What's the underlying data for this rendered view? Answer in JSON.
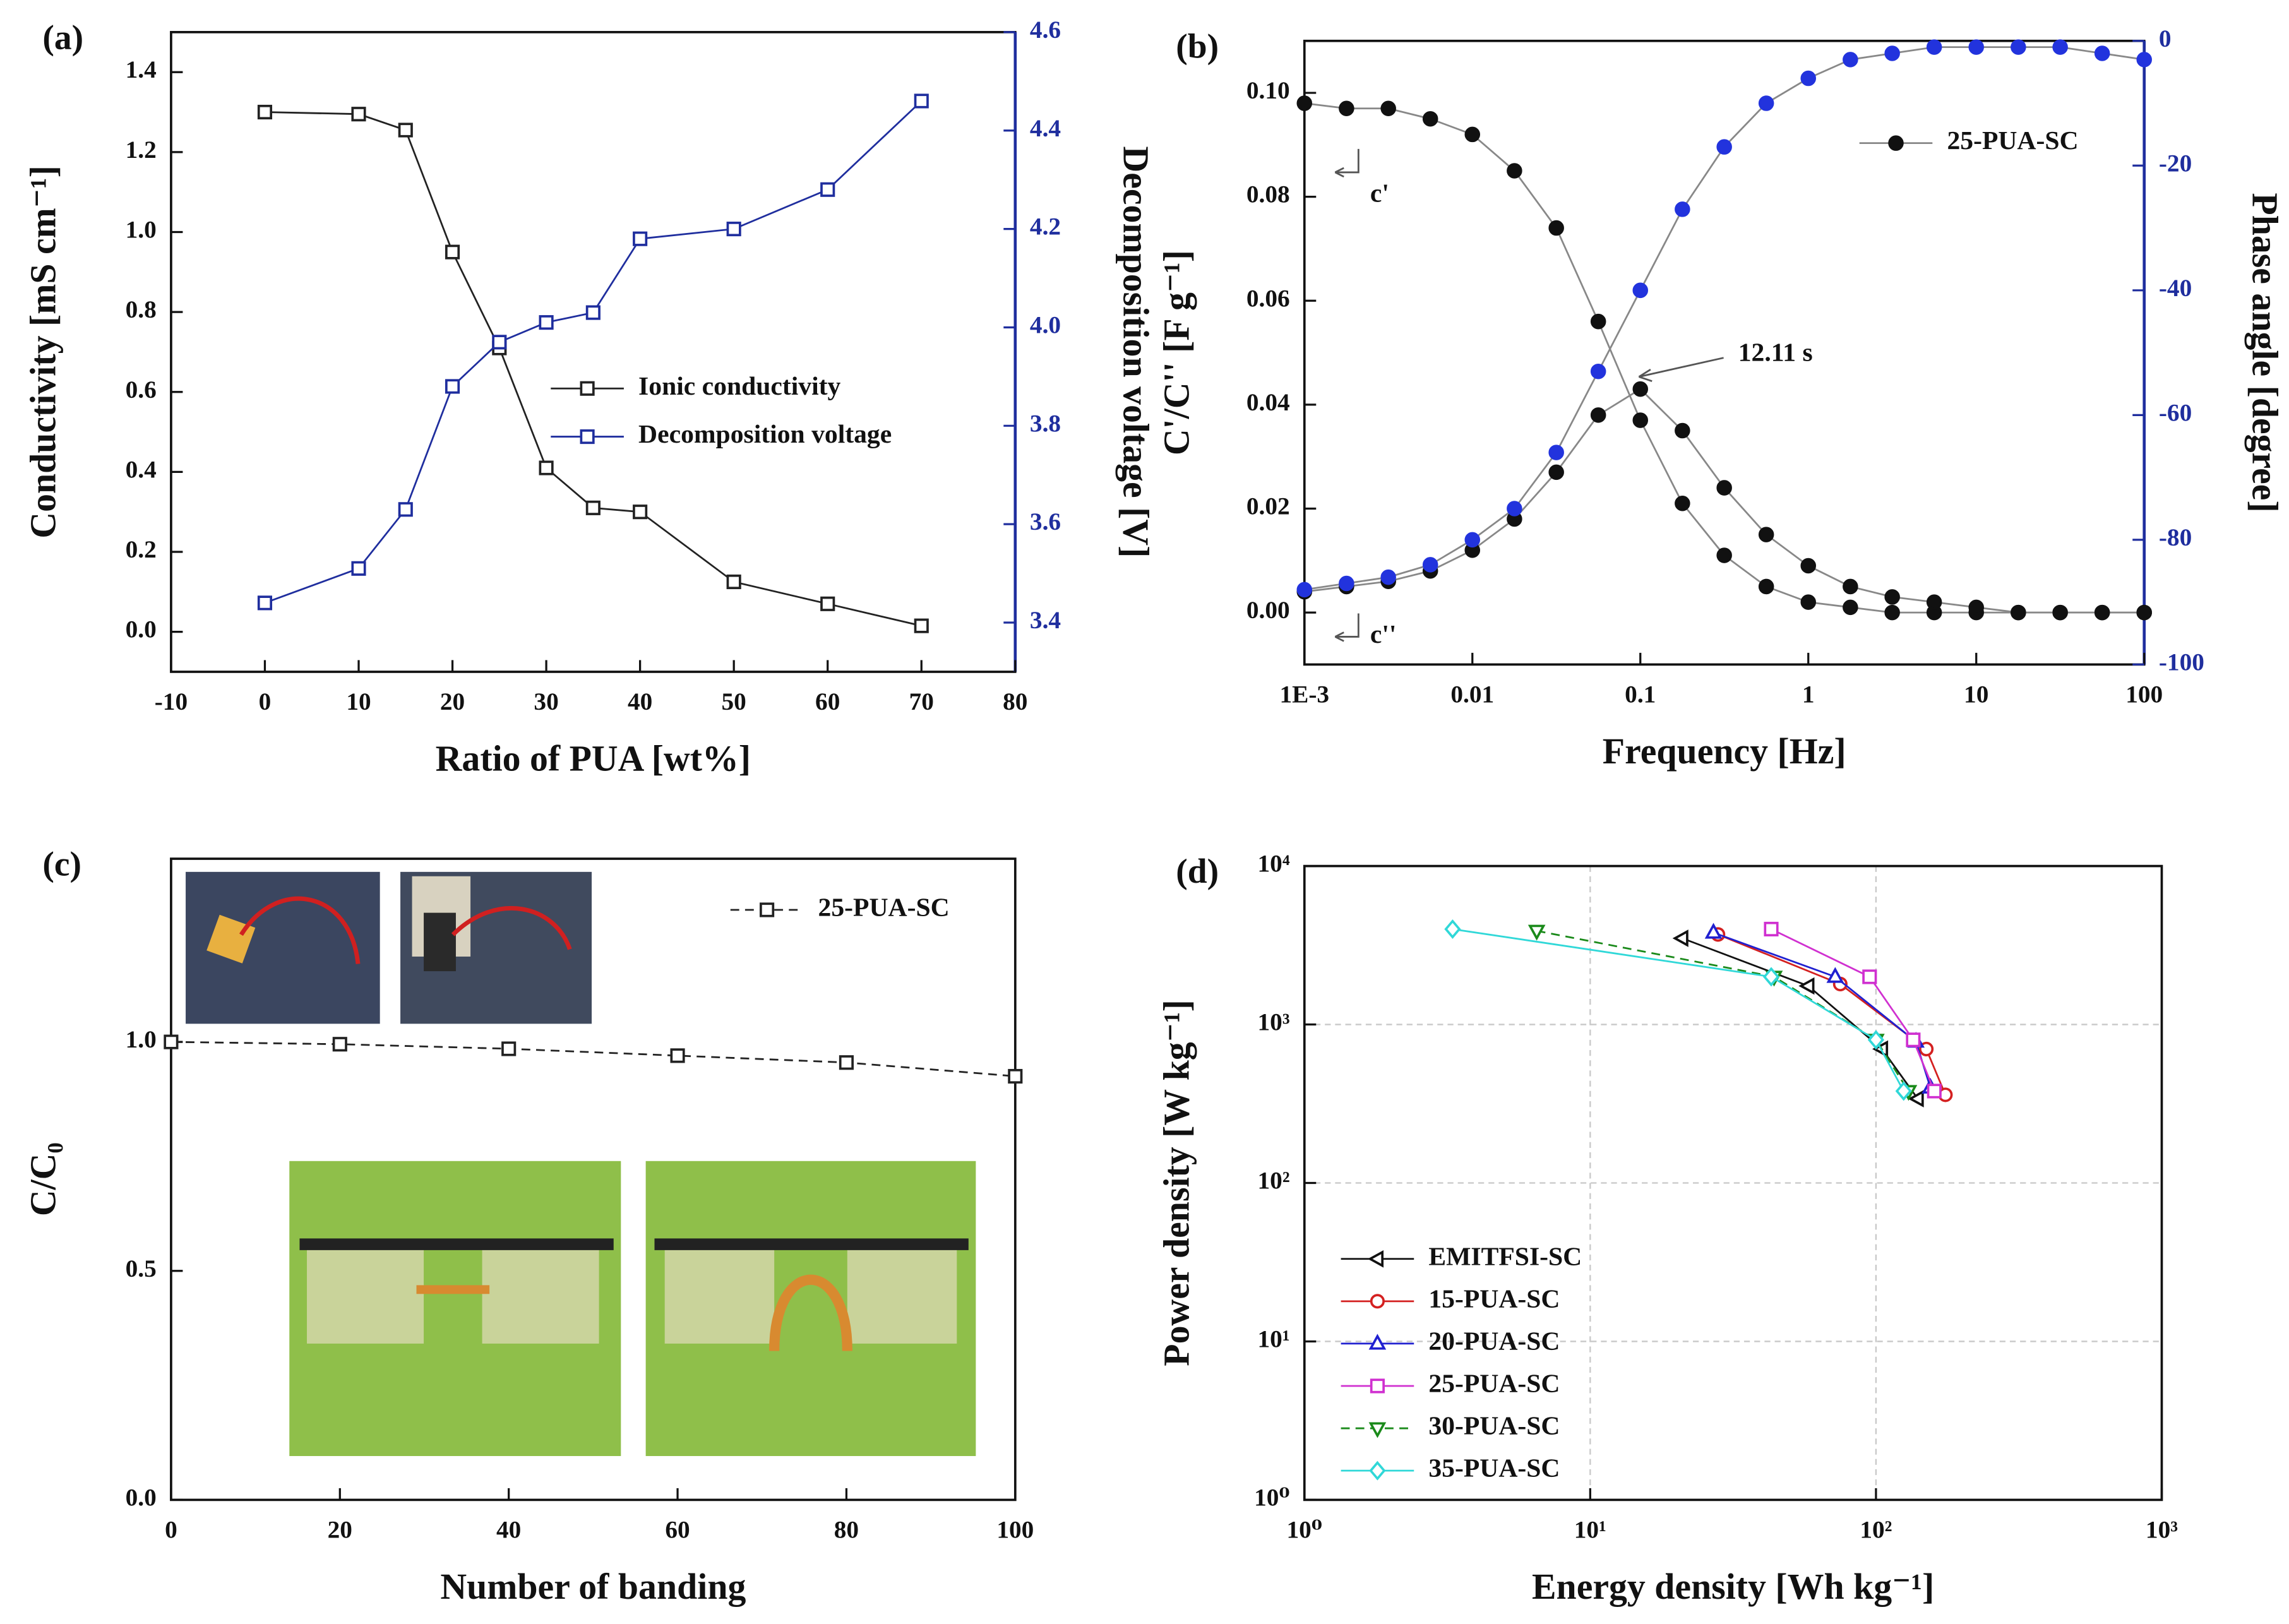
{
  "chart_data": [
    {
      "type": "line",
      "panel": "(a)",
      "xlabel": "Ratio of PUA [wt%]",
      "ylabel": "Conductivity [mS cm⁻¹]",
      "y2label": "Decomposition voltage [V]",
      "x": [
        0,
        10,
        15,
        20,
        25,
        30,
        35,
        40,
        50,
        60,
        70
      ],
      "series": [
        {
          "name": "Ionic conductivity",
          "color": "#222222",
          "marker": "square",
          "values": [
            1.3,
            1.295,
            1.255,
            0.95,
            0.71,
            0.41,
            0.31,
            0.3,
            0.125,
            0.07,
            0.015
          ]
        },
        {
          "name": "Decomposition voltage",
          "color": "#1f2e9e",
          "marker": "square",
          "axis": "y2",
          "values": [
            3.44,
            3.51,
            3.63,
            3.88,
            3.97,
            4.01,
            4.03,
            4.18,
            4.2,
            4.28,
            4.46
          ]
        }
      ],
      "xlim": [
        -10,
        80
      ],
      "xticks": [
        -10,
        0,
        10,
        20,
        30,
        40,
        50,
        60,
        70,
        80
      ],
      "ylim": [
        -0.1,
        1.5
      ],
      "yticks": [
        {
          "value": 0,
          "label": "0.0"
        },
        0.2,
        0.4,
        0.6,
        0.8,
        {
          "value": 1,
          "label": "1.0"
        },
        1.2,
        1.4
      ],
      "y2lim": [
        3.3,
        4.6
      ],
      "y2ticks": [
        3.4,
        3.6,
        3.8,
        {
          "value": 4,
          "label": "4.0"
        },
        4.2,
        4.4,
        4.6
      ],
      "y2color": "#1f2e9e",
      "legend": "center right"
    },
    {
      "type": "line",
      "panel": "(b)",
      "xlabel": "Frequency [Hz]",
      "ylabel": "C'/C'' [F g⁻¹]",
      "y2label": "Phase angle [degree]",
      "xscale": "log",
      "x": [
        0.001,
        0.00178,
        0.00316,
        0.00562,
        0.01,
        0.0178,
        0.0316,
        0.0562,
        0.1,
        0.178,
        0.316,
        0.562,
        1,
        1.78,
        3.16,
        5.62,
        10,
        17.8,
        31.6,
        56.2,
        100
      ],
      "series": [
        {
          "name": "25-PUA-SC",
          "color": "#111111",
          "marker": "circle",
          "filled": true,
          "values": [
            0.098,
            0.097,
            0.097,
            0.095,
            0.092,
            0.085,
            0.074,
            0.056,
            0.037,
            0.021,
            0.011,
            0.005,
            0.002,
            0.001,
            0,
            0,
            0,
            0,
            0,
            0,
            0
          ]
        },
        {
          "color": "#111111",
          "marker": "circle",
          "filled": true,
          "values": [
            0.004,
            0.005,
            0.006,
            0.008,
            0.012,
            0.018,
            0.027,
            0.038,
            0.043,
            0.035,
            0.024,
            0.015,
            0.009,
            0.005,
            0.003,
            0.002,
            0.001,
            0,
            0,
            0,
            0
          ]
        },
        {
          "color": "#2233dd",
          "marker": "circle",
          "filled": true,
          "axis": "y2",
          "values": [
            -88,
            -87,
            -86,
            -84,
            -80,
            -75,
            -66,
            -53,
            -40,
            -27,
            -17,
            -10,
            -6,
            -3,
            -2,
            -1,
            -1,
            -1,
            -1,
            -2,
            -3
          ]
        }
      ],
      "xlim": [
        0.001,
        100
      ],
      "xticks": [
        {
          "value": 0.001,
          "label": "1E-3"
        },
        0.01,
        0.1,
        1,
        10,
        100
      ],
      "ylim": [
        -0.01,
        0.11
      ],
      "yticks": [
        {
          "value": 0,
          "label": "0.00"
        },
        0.02,
        0.04,
        0.06,
        0.08,
        {
          "value": 0.1,
          "label": "0.10"
        }
      ],
      "y2lim": [
        -100,
        0
      ],
      "y2ticks": [
        -100,
        -80,
        -60,
        -40,
        -20,
        0
      ],
      "y2color": "#1f2e9e",
      "legend": "upper right",
      "annotations": [
        "12.11 s",
        "c'",
        "c''"
      ]
    },
    {
      "type": "line",
      "panel": "(c)",
      "xlabel": "Number of banding",
      "ylabel": "C/C₀",
      "x": [
        0,
        20,
        40,
        60,
        80,
        100
      ],
      "series": [
        {
          "name": "25-PUA-SC",
          "color": "#222222",
          "marker": "square",
          "dashed": true,
          "values": [
            1.0,
            0.995,
            0.985,
            0.97,
            0.955,
            0.925
          ]
        }
      ],
      "xlim": [
        0,
        100
      ],
      "xticks": [
        0,
        20,
        40,
        60,
        80,
        100
      ],
      "ylim": [
        0,
        1.4
      ],
      "yticks": [
        {
          "value": 0,
          "label": "0.0"
        },
        0.5,
        {
          "value": 1,
          "label": "1.0"
        }
      ],
      "legend": "upper right"
    },
    {
      "type": "line",
      "panel": "(d)",
      "xlabel": "Energy density [Wh kg⁻¹]",
      "ylabel": "Power density [W kg⁻¹]",
      "xscale": "log",
      "yscale": "log",
      "grid": true,
      "series": [
        {
          "name": "EMITFSI-SC",
          "color": "#111111",
          "marker": "triangle-left",
          "x": [
            21,
            58,
            105,
            140
          ],
          "values": [
            3500,
            1750,
            700,
            340
          ]
        },
        {
          "name": "15-PUA-SC",
          "color": "#d42020",
          "marker": "circle",
          "x": [
            28,
            75,
            150,
            175
          ],
          "values": [
            3700,
            1800,
            700,
            360
          ]
        },
        {
          "name": "20-PUA-SC",
          "color": "#2020d0",
          "marker": "triangle-up",
          "x": [
            27,
            72,
            138,
            155
          ],
          "values": [
            3800,
            2000,
            780,
            400
          ]
        },
        {
          "name": "25-PUA-SC",
          "color": "#d030d0",
          "marker": "square",
          "x": [
            43,
            95,
            135,
            160
          ],
          "values": [
            4000,
            2000,
            800,
            380
          ]
        },
        {
          "name": "30-PUA-SC",
          "color": "#1a8a1a",
          "marker": "triangle-down",
          "dashed": true,
          "x": [
            6.5,
            44,
            100,
            130
          ],
          "values": [
            3900,
            2000,
            800,
            380
          ]
        },
        {
          "name": "35-PUA-SC",
          "color": "#30d8d8",
          "marker": "diamond",
          "x": [
            3.3,
            43,
            100,
            125
          ],
          "values": [
            4000,
            2000,
            800,
            380
          ]
        }
      ],
      "xlim": [
        1,
        1000
      ],
      "xticks": [
        {
          "value": 1,
          "label": "10⁰"
        },
        {
          "value": 10,
          "label": "10¹"
        },
        {
          "value": 100,
          "label": "10²"
        },
        {
          "value": 1000,
          "label": "10³"
        }
      ],
      "ylim": [
        1,
        10000
      ],
      "yticks": [
        {
          "value": 1,
          "label": "10⁰"
        },
        {
          "value": 10,
          "label": "10¹"
        },
        {
          "value": 100,
          "label": "10²"
        },
        {
          "value": 1000,
          "label": "10³"
        },
        {
          "value": 10000,
          "label": "10⁴"
        }
      ],
      "legend": "lower left"
    }
  ]
}
